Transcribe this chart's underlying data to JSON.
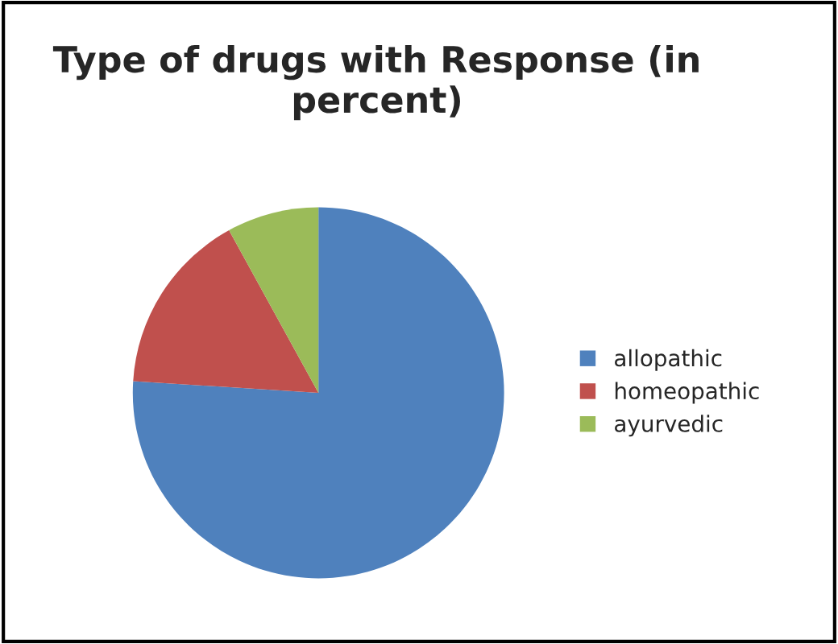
{
  "chart_data": {
    "type": "pie",
    "title": "Type of drugs with Response (in percent)",
    "categories": [
      "allopathic",
      "homeopathic",
      "ayurvedic"
    ],
    "values": [
      76,
      16,
      8
    ],
    "colors": [
      "#4f81bd",
      "#c0504d",
      "#9bbb59"
    ],
    "legend": "right"
  }
}
